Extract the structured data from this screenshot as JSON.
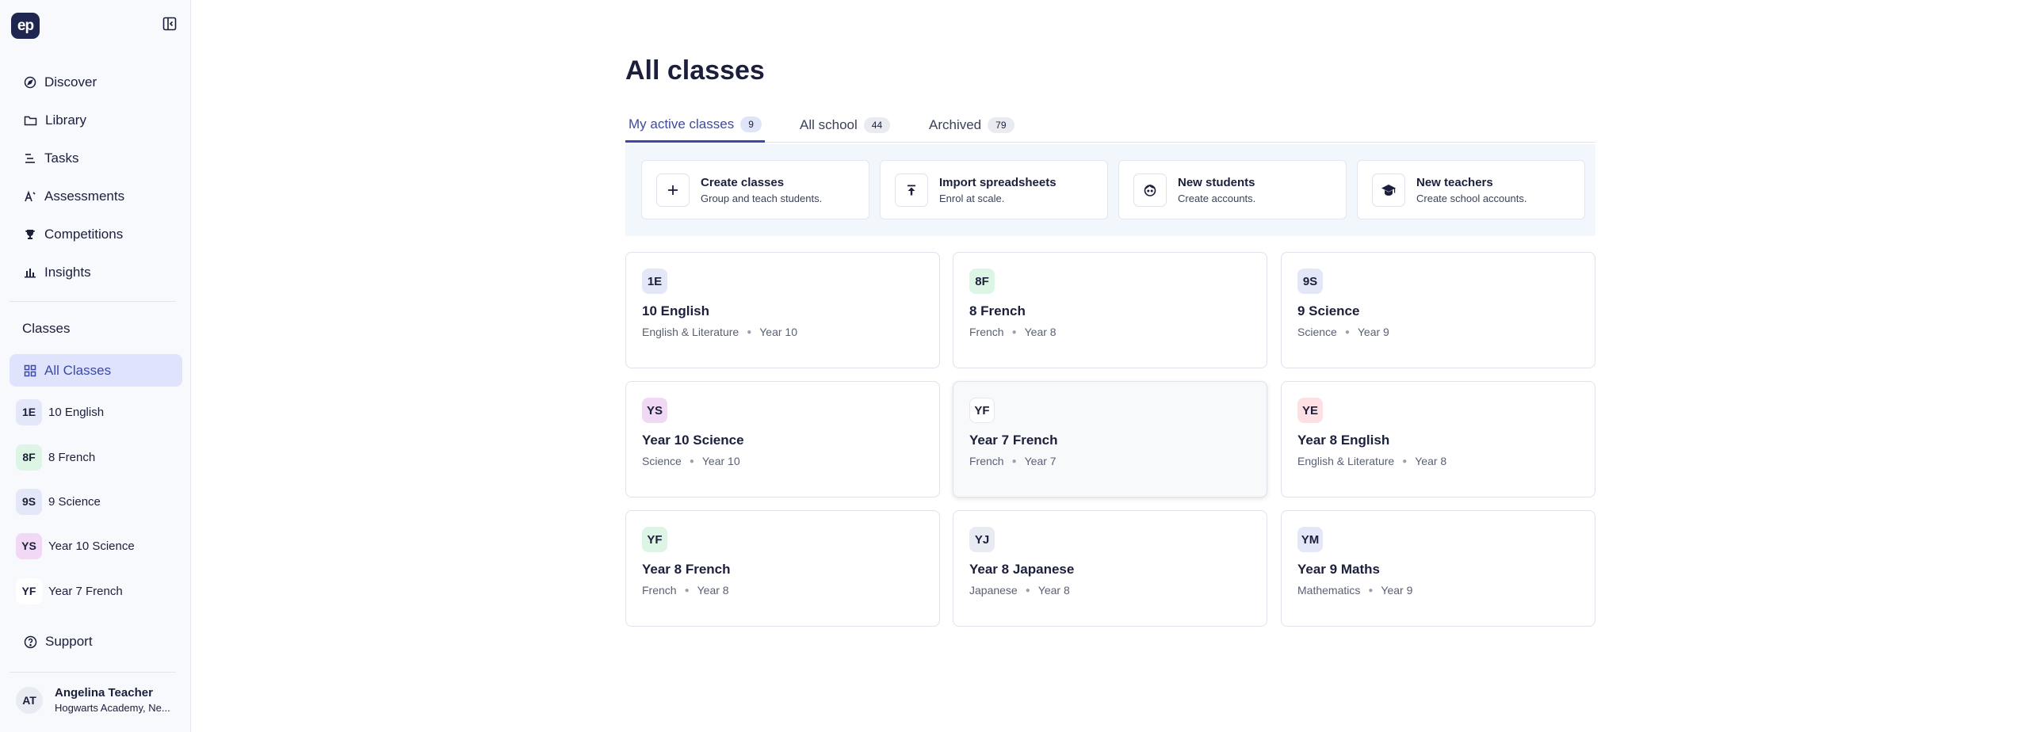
{
  "logo_text": "ep",
  "nav": [
    {
      "label": "Discover",
      "icon": "compass-icon"
    },
    {
      "label": "Library",
      "icon": "folder-icon"
    },
    {
      "label": "Tasks",
      "icon": "tasks-icon"
    },
    {
      "label": "Assessments",
      "icon": "assessments-icon"
    },
    {
      "label": "Competitions",
      "icon": "trophy-icon"
    },
    {
      "label": "Insights",
      "icon": "bar-chart-icon"
    }
  ],
  "sidebar": {
    "classes_heading": "Classes",
    "all_classes_label": "All Classes",
    "classes": [
      {
        "abbr": "1E",
        "name": "10 English",
        "color": "#e3e7f8"
      },
      {
        "abbr": "8F",
        "name": "8 French",
        "color": "#dcf5e4"
      },
      {
        "abbr": "9S",
        "name": "9 Science",
        "color": "#e3e7f8"
      },
      {
        "abbr": "YS",
        "name": "Year 10 Science",
        "color": "#f1d8f4"
      },
      {
        "abbr": "YF",
        "name": "Year 7 French",
        "color": "#ffffff"
      }
    ],
    "support_label": "Support",
    "user": {
      "initials": "AT",
      "name": "Angelina Teacher",
      "school": "Hogwarts Academy, Ne..."
    }
  },
  "main": {
    "title": "All classes",
    "tabs": [
      {
        "label": "My active classes",
        "count": "9"
      },
      {
        "label": "All school",
        "count": "44"
      },
      {
        "label": "Archived",
        "count": "79"
      }
    ],
    "actions": [
      {
        "title": "Create classes",
        "subtitle": "Group and teach students.",
        "icon": "plus-icon"
      },
      {
        "title": "Import spreadsheets",
        "subtitle": "Enrol at scale.",
        "icon": "upload-icon"
      },
      {
        "title": "New students",
        "subtitle": "Create accounts.",
        "icon": "student-icon"
      },
      {
        "title": "New teachers",
        "subtitle": "Create school accounts.",
        "icon": "graduation-cap-icon"
      }
    ],
    "classes": [
      {
        "abbr": "1E",
        "name": "10 English",
        "subject": "English & Literature",
        "year": "Year 10",
        "color": "#e3e7f8"
      },
      {
        "abbr": "8F",
        "name": "8 French",
        "subject": "French",
        "year": "Year 8",
        "color": "#dcf5e4"
      },
      {
        "abbr": "9S",
        "name": "9 Science",
        "subject": "Science",
        "year": "Year 9",
        "color": "#e3e7f8"
      },
      {
        "abbr": "YS",
        "name": "Year 10 Science",
        "subject": "Science",
        "year": "Year 10",
        "color": "#f1d8f4"
      },
      {
        "abbr": "YF",
        "name": "Year 7 French",
        "subject": "French",
        "year": "Year 7",
        "color": "#ffffff"
      },
      {
        "abbr": "YE",
        "name": "Year 8 English",
        "subject": "English & Literature",
        "year": "Year 8",
        "color": "#fde0e3"
      },
      {
        "abbr": "YF",
        "name": "Year 8 French",
        "subject": "French",
        "year": "Year 8",
        "color": "#dcf5e4"
      },
      {
        "abbr": "YJ",
        "name": "Year 8 Japanese",
        "subject": "Japanese",
        "year": "Year 8",
        "color": "#e8ebf2"
      },
      {
        "abbr": "YM",
        "name": "Year 9 Maths",
        "subject": "Mathematics",
        "year": "Year 9",
        "color": "#e3e7f8"
      }
    ]
  }
}
